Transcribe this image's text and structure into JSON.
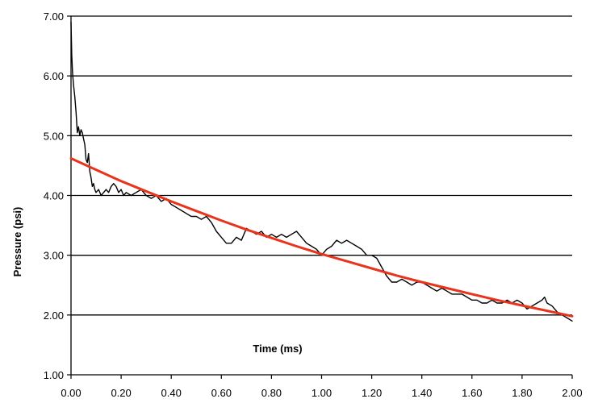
{
  "chart_data": {
    "type": "line",
    "title": "",
    "xlabel": "Time (ms)",
    "ylabel": "Pressure (psi)",
    "xlim": [
      0.0,
      2.0
    ],
    "ylim": [
      1.0,
      7.0
    ],
    "x_ticks": [
      "0.00",
      "0.20",
      "0.40",
      "0.60",
      "0.80",
      "1.00",
      "1.20",
      "1.40",
      "1.60",
      "1.80",
      "2.00"
    ],
    "y_ticks": [
      "1.00",
      "2.00",
      "3.00",
      "4.00",
      "5.00",
      "6.00",
      "7.00"
    ],
    "grid": "horizontal",
    "legend": "none",
    "colors": {
      "measured": "#000000",
      "fit": "#e8341c",
      "grid": "#000000"
    },
    "series": [
      {
        "style": "measured",
        "x": [
          0.0,
          0.003,
          0.006,
          0.01,
          0.015,
          0.02,
          0.025,
          0.03,
          0.035,
          0.04,
          0.045,
          0.05,
          0.055,
          0.06,
          0.065,
          0.07,
          0.075,
          0.08,
          0.085,
          0.09,
          0.095,
          0.1,
          0.11,
          0.12,
          0.13,
          0.14,
          0.15,
          0.16,
          0.17,
          0.18,
          0.19,
          0.2,
          0.21,
          0.22,
          0.24,
          0.26,
          0.28,
          0.3,
          0.32,
          0.34,
          0.36,
          0.38,
          0.4,
          0.42,
          0.44,
          0.46,
          0.48,
          0.5,
          0.52,
          0.54,
          0.56,
          0.58,
          0.6,
          0.62,
          0.64,
          0.66,
          0.68,
          0.7,
          0.72,
          0.74,
          0.76,
          0.78,
          0.8,
          0.82,
          0.84,
          0.86,
          0.88,
          0.9,
          0.92,
          0.94,
          0.96,
          0.98,
          1.0,
          1.02,
          1.04,
          1.06,
          1.08,
          1.1,
          1.12,
          1.14,
          1.16,
          1.18,
          1.2,
          1.22,
          1.24,
          1.26,
          1.28,
          1.3,
          1.32,
          1.34,
          1.36,
          1.38,
          1.4,
          1.42,
          1.44,
          1.46,
          1.48,
          1.5,
          1.52,
          1.54,
          1.56,
          1.58,
          1.6,
          1.62,
          1.64,
          1.66,
          1.68,
          1.7,
          1.72,
          1.74,
          1.76,
          1.78,
          1.8,
          1.82,
          1.84,
          1.86,
          1.88,
          1.89,
          1.9,
          1.92,
          1.94,
          1.96,
          1.98,
          2.0
        ],
        "y": [
          6.9,
          6.35,
          6.05,
          5.85,
          5.65,
          5.4,
          5.05,
          5.15,
          5.0,
          5.1,
          5.05,
          4.95,
          4.85,
          4.6,
          4.55,
          4.7,
          4.4,
          4.3,
          4.15,
          4.2,
          4.1,
          4.05,
          4.1,
          4.0,
          4.05,
          4.1,
          4.05,
          4.15,
          4.2,
          4.15,
          4.05,
          4.1,
          4.0,
          4.05,
          4.0,
          4.05,
          4.1,
          4.0,
          3.95,
          4.0,
          3.9,
          3.95,
          3.85,
          3.8,
          3.75,
          3.7,
          3.65,
          3.65,
          3.6,
          3.65,
          3.55,
          3.4,
          3.3,
          3.2,
          3.2,
          3.3,
          3.25,
          3.45,
          3.4,
          3.35,
          3.4,
          3.3,
          3.35,
          3.3,
          3.35,
          3.3,
          3.35,
          3.4,
          3.3,
          3.2,
          3.15,
          3.1,
          3.0,
          3.1,
          3.15,
          3.25,
          3.2,
          3.25,
          3.2,
          3.15,
          3.1,
          3.0,
          3.0,
          2.95,
          2.8,
          2.65,
          2.55,
          2.55,
          2.6,
          2.55,
          2.5,
          2.55,
          2.55,
          2.5,
          2.45,
          2.4,
          2.45,
          2.4,
          2.35,
          2.35,
          2.35,
          2.3,
          2.25,
          2.25,
          2.2,
          2.2,
          2.25,
          2.2,
          2.2,
          2.25,
          2.2,
          2.25,
          2.2,
          2.1,
          2.15,
          2.2,
          2.25,
          2.3,
          2.2,
          2.15,
          2.05,
          2.0,
          1.95,
          1.9
        ]
      },
      {
        "style": "fit",
        "x": [
          0.0,
          0.1,
          0.2,
          0.3,
          0.4,
          0.5,
          0.6,
          0.7,
          0.8,
          0.9,
          1.0,
          1.1,
          1.2,
          1.3,
          1.4,
          1.5,
          1.6,
          1.7,
          1.8,
          1.9,
          2.0
        ],
        "y": [
          4.62,
          4.43,
          4.24,
          4.07,
          3.9,
          3.74,
          3.58,
          3.43,
          3.29,
          3.15,
          3.02,
          2.9,
          2.78,
          2.66,
          2.55,
          2.45,
          2.35,
          2.25,
          2.16,
          2.07,
          1.98
        ]
      }
    ]
  }
}
